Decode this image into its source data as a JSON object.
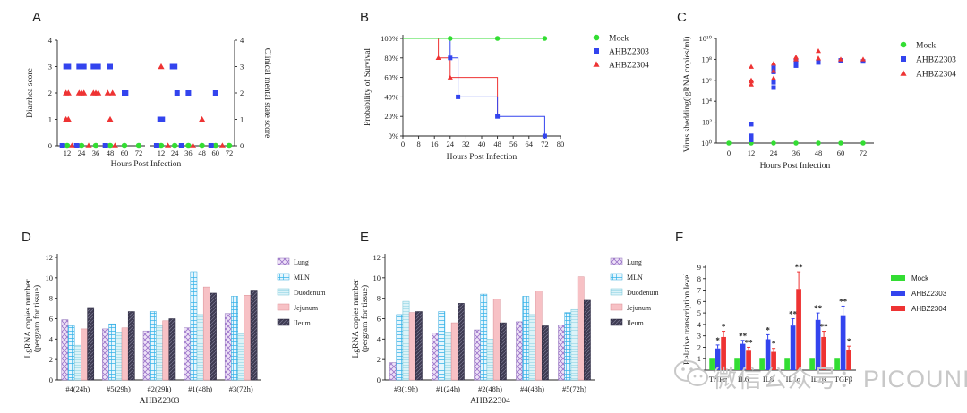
{
  "colors": {
    "mock": "#33dd33",
    "ahbz2303": "#3344ee",
    "ahbz2304": "#ee3333"
  },
  "watermark": {
    "text": "微信公众号：PICOUNI"
  },
  "chart_data": [
    {
      "id": "A",
      "type": "scatter",
      "title": "A",
      "xlabel": "Hours Post Infection",
      "ylabel": "Diarrhea score",
      "ylabel_right": "Clinical mental state score",
      "ylim": [
        0,
        4
      ],
      "yticks": [
        "0",
        "1",
        "2",
        "3",
        "4"
      ],
      "xticks": [
        "12",
        "24",
        "36",
        "48",
        "60",
        "72"
      ],
      "legend": [
        "Mock",
        "AHBZ2303",
        "AHBZ2304"
      ],
      "groups": [
        {
          "name": "Diarrhea score",
          "points": [
            {
              "series": "AHBZ2303",
              "x": 11,
              "y": 3
            },
            {
              "series": "AHBZ2303",
              "x": 12,
              "y": 3
            },
            {
              "series": "AHBZ2303",
              "x": 13,
              "y": 3
            },
            {
              "series": "AHBZ2303",
              "x": 22,
              "y": 3
            },
            {
              "series": "AHBZ2303",
              "x": 24,
              "y": 3
            },
            {
              "series": "AHBZ2303",
              "x": 26,
              "y": 3
            },
            {
              "series": "AHBZ2303",
              "x": 34,
              "y": 3
            },
            {
              "series": "AHBZ2303",
              "x": 36,
              "y": 3
            },
            {
              "series": "AHBZ2303",
              "x": 38,
              "y": 3
            },
            {
              "series": "AHBZ2303",
              "x": 48,
              "y": 3
            },
            {
              "series": "AHBZ2303",
              "x": 60,
              "y": 2
            },
            {
              "series": "AHBZ2303",
              "x": 61,
              "y": 2
            },
            {
              "series": "AHBZ2304",
              "x": 11,
              "y": 2
            },
            {
              "series": "AHBZ2304",
              "x": 13,
              "y": 2
            },
            {
              "series": "AHBZ2304",
              "x": 11,
              "y": 1
            },
            {
              "series": "AHBZ2304",
              "x": 13,
              "y": 1
            },
            {
              "series": "AHBZ2304",
              "x": 22,
              "y": 2
            },
            {
              "series": "AHBZ2304",
              "x": 24,
              "y": 2
            },
            {
              "series": "AHBZ2304",
              "x": 26,
              "y": 2
            },
            {
              "series": "AHBZ2304",
              "x": 34,
              "y": 2
            },
            {
              "series": "AHBZ2304",
              "x": 36,
              "y": 2
            },
            {
              "series": "AHBZ2304",
              "x": 38,
              "y": 2
            },
            {
              "series": "AHBZ2304",
              "x": 46,
              "y": 2
            },
            {
              "series": "AHBZ2304",
              "x": 50,
              "y": 2
            },
            {
              "series": "AHBZ2304",
              "x": 48,
              "y": 1
            },
            {
              "series": "Mock",
              "x": 12,
              "y": 0
            },
            {
              "series": "Mock",
              "x": 24,
              "y": 0
            },
            {
              "series": "Mock",
              "x": 36,
              "y": 0
            },
            {
              "series": "Mock",
              "x": 48,
              "y": 0
            },
            {
              "series": "Mock",
              "x": 60,
              "y": 0
            },
            {
              "series": "Mock",
              "x": 72,
              "y": 0
            },
            {
              "series": "AHBZ2303",
              "x": 8,
              "y": 0
            },
            {
              "series": "AHBZ2303",
              "x": 20,
              "y": 0
            },
            {
              "series": "AHBZ2303",
              "x": 44,
              "y": 0
            },
            {
              "series": "AHBZ2304",
              "x": 16,
              "y": 0
            },
            {
              "series": "AHBZ2304",
              "x": 30,
              "y": 0
            },
            {
              "series": "AHBZ2304",
              "x": 52,
              "y": 0
            }
          ]
        },
        {
          "name": "Clinical mental state score",
          "points": [
            {
              "series": "AHBZ2303",
              "x": 11,
              "y": 1
            },
            {
              "series": "AHBZ2303",
              "x": 13,
              "y": 1
            },
            {
              "series": "AHBZ2303",
              "x": 22,
              "y": 3
            },
            {
              "series": "AHBZ2303",
              "x": 24,
              "y": 3
            },
            {
              "series": "AHBZ2303",
              "x": 26,
              "y": 2
            },
            {
              "series": "AHBZ2303",
              "x": 36,
              "y": 2
            },
            {
              "series": "AHBZ2303",
              "x": 60,
              "y": 2
            },
            {
              "series": "AHBZ2304",
              "x": 12,
              "y": 3
            },
            {
              "series": "AHBZ2304",
              "x": 48,
              "y": 1
            },
            {
              "series": "Mock",
              "x": 12,
              "y": 0
            },
            {
              "series": "Mock",
              "x": 24,
              "y": 0
            },
            {
              "series": "Mock",
              "x": 36,
              "y": 0
            },
            {
              "series": "Mock",
              "x": 48,
              "y": 0
            },
            {
              "series": "Mock",
              "x": 60,
              "y": 0
            },
            {
              "series": "Mock",
              "x": 72,
              "y": 0
            },
            {
              "series": "AHBZ2303",
              "x": 8,
              "y": 0
            },
            {
              "series": "AHBZ2303",
              "x": 30,
              "y": 0
            },
            {
              "series": "AHBZ2303",
              "x": 56,
              "y": 0
            },
            {
              "series": "AHBZ2304",
              "x": 18,
              "y": 0
            },
            {
              "series": "AHBZ2304",
              "x": 40,
              "y": 0
            },
            {
              "series": "AHBZ2304",
              "x": 66,
              "y": 0
            }
          ]
        }
      ]
    },
    {
      "id": "B",
      "type": "line",
      "title": "B",
      "xlabel": "Hours Post Infection",
      "ylabel": "Probability of Survival",
      "xlim": [
        0,
        80
      ],
      "ylim": [
        0,
        100
      ],
      "xticks": [
        "0",
        "8",
        "16",
        "24",
        "32",
        "40",
        "48",
        "56",
        "64",
        "72",
        "80"
      ],
      "yticks": [
        "0%",
        "20%",
        "40%",
        "60%",
        "80%",
        "100%"
      ],
      "legend": [
        "Mock",
        "AHBZ2303",
        "AHBZ2304"
      ],
      "series": [
        {
          "name": "Mock",
          "steps": [
            [
              0,
              100
            ],
            [
              72,
              100
            ]
          ],
          "markers": [
            [
              24,
              100
            ],
            [
              48,
              100
            ],
            [
              72,
              100
            ]
          ]
        },
        {
          "name": "AHBZ2303",
          "steps": [
            [
              0,
              100
            ],
            [
              24,
              100
            ],
            [
              24,
              80
            ],
            [
              28,
              80
            ],
            [
              28,
              40
            ],
            [
              48,
              40
            ],
            [
              48,
              20
            ],
            [
              72,
              20
            ],
            [
              72,
              0
            ]
          ],
          "markers": [
            [
              24,
              80
            ],
            [
              28,
              40
            ],
            [
              48,
              20
            ],
            [
              72,
              0
            ]
          ]
        },
        {
          "name": "AHBZ2304",
          "steps": [
            [
              0,
              100
            ],
            [
              18,
              100
            ],
            [
              18,
              80
            ],
            [
              24,
              80
            ],
            [
              24,
              60
            ],
            [
              48,
              60
            ],
            [
              48,
              20
            ]
          ],
          "markers": [
            [
              18,
              80
            ],
            [
              24,
              60
            ]
          ]
        }
      ]
    },
    {
      "id": "C",
      "type": "scatter",
      "title": "C",
      "xlabel": "Hours Post Infection",
      "ylabel": "Virus shedding(lgRNA copies/ml)",
      "ylim_log10": [
        0,
        10
      ],
      "yticks": [
        "10⁰",
        "10²",
        "10⁴",
        "10⁶",
        "10⁸",
        "10¹⁰"
      ],
      "xticks": [
        "0",
        "12",
        "24",
        "36",
        "48",
        "60",
        "72"
      ],
      "legend": [
        "Mock",
        "AHBZ2303",
        "AHBZ2304"
      ],
      "points": [
        {
          "series": "Mock",
          "x": 0,
          "log10": 0
        },
        {
          "series": "Mock",
          "x": 12,
          "log10": 0
        },
        {
          "series": "Mock",
          "x": 24,
          "log10": 0
        },
        {
          "series": "Mock",
          "x": 36,
          "log10": 0
        },
        {
          "series": "Mock",
          "x": 48,
          "log10": 0
        },
        {
          "series": "Mock",
          "x": 60,
          "log10": 0
        },
        {
          "series": "Mock",
          "x": 72,
          "log10": 0
        },
        {
          "series": "AHBZ2303",
          "x": 12,
          "log10": 1.8
        },
        {
          "series": "AHBZ2303",
          "x": 12,
          "log10": 0.5
        },
        {
          "series": "AHBZ2303",
          "x": 12,
          "log10": 0.3
        },
        {
          "series": "AHBZ2303",
          "x": 12,
          "log10": 0.7
        },
        {
          "series": "AHBZ2303",
          "x": 24,
          "log10": 5.3
        },
        {
          "series": "AHBZ2303",
          "x": 24,
          "log10": 5.8
        },
        {
          "series": "AHBZ2303",
          "x": 24,
          "log10": 7.2
        },
        {
          "series": "AHBZ2303",
          "x": 24,
          "log10": 6.8
        },
        {
          "series": "AHBZ2303",
          "x": 36,
          "log10": 7.4
        },
        {
          "series": "AHBZ2303",
          "x": 36,
          "log10": 7.9
        },
        {
          "series": "AHBZ2303",
          "x": 48,
          "log10": 7.7
        },
        {
          "series": "AHBZ2303",
          "x": 60,
          "log10": 7.9
        },
        {
          "series": "AHBZ2303",
          "x": 72,
          "log10": 7.8
        },
        {
          "series": "AHBZ2304",
          "x": 12,
          "log10": 7.3
        },
        {
          "series": "AHBZ2304",
          "x": 12,
          "log10": 6.0
        },
        {
          "series": "AHBZ2304",
          "x": 12,
          "log10": 5.6
        },
        {
          "series": "AHBZ2304",
          "x": 12,
          "log10": 5.9
        },
        {
          "series": "AHBZ2304",
          "x": 24,
          "log10": 7.6
        },
        {
          "series": "AHBZ2304",
          "x": 24,
          "log10": 6.2
        },
        {
          "series": "AHBZ2304",
          "x": 24,
          "log10": 6.9
        },
        {
          "series": "AHBZ2304",
          "x": 36,
          "log10": 8.2
        },
        {
          "series": "AHBZ2304",
          "x": 36,
          "log10": 8.0
        },
        {
          "series": "AHBZ2304",
          "x": 48,
          "log10": 8.8
        },
        {
          "series": "AHBZ2304",
          "x": 48,
          "log10": 8.1
        },
        {
          "series": "AHBZ2304",
          "x": 60,
          "log10": 8.0
        },
        {
          "series": "AHBZ2304",
          "x": 72,
          "log10": 8.0
        }
      ]
    },
    {
      "id": "D",
      "type": "bar",
      "title": "D",
      "xlabel": "AHBZ2303",
      "ylabel": "LgRNA copies number",
      "ylabel2": "(pergram for tissue)",
      "ylim": [
        0,
        12
      ],
      "yticks": [
        "0",
        "2",
        "4",
        "6",
        "8",
        "10",
        "12"
      ],
      "categories": [
        "#4(24h)",
        "#5(29h)",
        "#2(29h)",
        "#1(48h)",
        "#3(72h)"
      ],
      "series": [
        {
          "name": "Lung",
          "values": [
            5.9,
            5.0,
            4.8,
            5.1,
            6.5
          ]
        },
        {
          "name": "MLN",
          "values": [
            5.3,
            5.5,
            6.7,
            10.6,
            8.2
          ]
        },
        {
          "name": "Duodenum",
          "values": [
            3.4,
            4.7,
            5.3,
            6.4,
            4.5
          ]
        },
        {
          "name": "Jejunum",
          "values": [
            5.0,
            5.1,
            5.8,
            9.1,
            8.3
          ]
        },
        {
          "name": "Ileum",
          "values": [
            7.1,
            6.7,
            6.0,
            8.5,
            8.8
          ]
        }
      ]
    },
    {
      "id": "E",
      "type": "bar",
      "title": "E",
      "xlabel": "AHBZ2304",
      "ylabel": "LgRNA copies number",
      "ylabel2": "(pergram for tissue)",
      "ylim": [
        0,
        12
      ],
      "yticks": [
        "0",
        "2",
        "4",
        "6",
        "8",
        "10",
        "12"
      ],
      "categories": [
        "#3(19h)",
        "#1(24h)",
        "#2(48h)",
        "#4(48h)",
        "#5(72h)"
      ],
      "series": [
        {
          "name": "Lung",
          "values": [
            1.7,
            4.6,
            4.9,
            5.7,
            5.4
          ]
        },
        {
          "name": "MLN",
          "values": [
            6.4,
            6.7,
            8.4,
            8.2,
            6.6
          ]
        },
        {
          "name": "Duodenum",
          "values": [
            7.7,
            4.7,
            4.0,
            6.4,
            6.9
          ]
        },
        {
          "name": "Jejunum",
          "values": [
            6.6,
            5.6,
            7.9,
            8.7,
            10.1
          ]
        },
        {
          "name": "Ileum",
          "values": [
            6.7,
            7.5,
            5.6,
            5.3,
            7.8
          ]
        }
      ]
    },
    {
      "id": "F",
      "type": "bar",
      "title": "F",
      "xlabel": "",
      "ylabel": "Relative transcription level",
      "ylim": [
        0,
        9
      ],
      "yticks": [
        "0",
        "1",
        "2",
        "3",
        "4",
        "5",
        "6",
        "7",
        "8",
        "9"
      ],
      "categories": [
        "TNFα",
        "IL6",
        "IL8",
        "IL1α",
        "IL1β",
        "TGFβ"
      ],
      "series": [
        {
          "name": "Mock",
          "values": [
            1.0,
            1.0,
            1.0,
            1.0,
            1.0,
            1.0
          ],
          "errors": [
            0,
            0,
            0,
            0,
            0,
            0
          ],
          "sig": [
            "",
            "",
            "",
            "",
            "",
            ""
          ]
        },
        {
          "name": "AHBZ2303",
          "values": [
            1.9,
            2.3,
            2.7,
            3.9,
            4.4,
            4.8
          ],
          "errors": [
            0.3,
            0.3,
            0.4,
            0.6,
            0.6,
            0.8
          ],
          "sig": [
            "*",
            "**",
            "*",
            "**",
            "**",
            "**"
          ]
        },
        {
          "name": "AHBZ2304",
          "values": [
            2.9,
            1.7,
            1.6,
            7.1,
            2.9,
            1.8
          ],
          "errors": [
            0.5,
            0.3,
            0.3,
            1.5,
            0.5,
            0.3
          ],
          "sig": [
            "*",
            "**",
            "*",
            "**",
            "**",
            "*"
          ]
        }
      ]
    }
  ]
}
